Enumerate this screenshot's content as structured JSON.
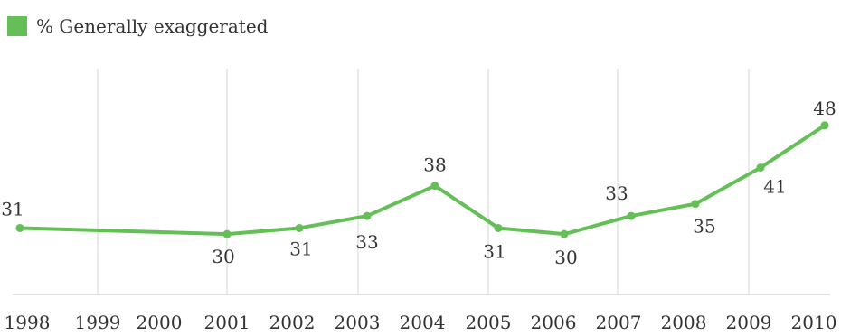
{
  "chart_data": {
    "type": "line",
    "title": "",
    "xlabel": "",
    "ylabel": "",
    "x": [
      "1998",
      "2001",
      "2002",
      "2003",
      "2004",
      "2005",
      "2006",
      "2007",
      "2008",
      "2009",
      "2010"
    ],
    "x_axis_ticks": [
      "1998",
      "1999",
      "2000",
      "2001",
      "2002",
      "2003",
      "2004",
      "2005",
      "2006",
      "2007",
      "2008",
      "2009",
      "2010"
    ],
    "ylim": [
      20,
      55
    ],
    "grid": true,
    "legend": {
      "placement": "top-left"
    },
    "series": [
      {
        "name": "% Generally exaggerated",
        "color": "#63bf56",
        "values": [
          31,
          30,
          31,
          33,
          38,
          31,
          30,
          33,
          35,
          41,
          48
        ]
      }
    ]
  }
}
